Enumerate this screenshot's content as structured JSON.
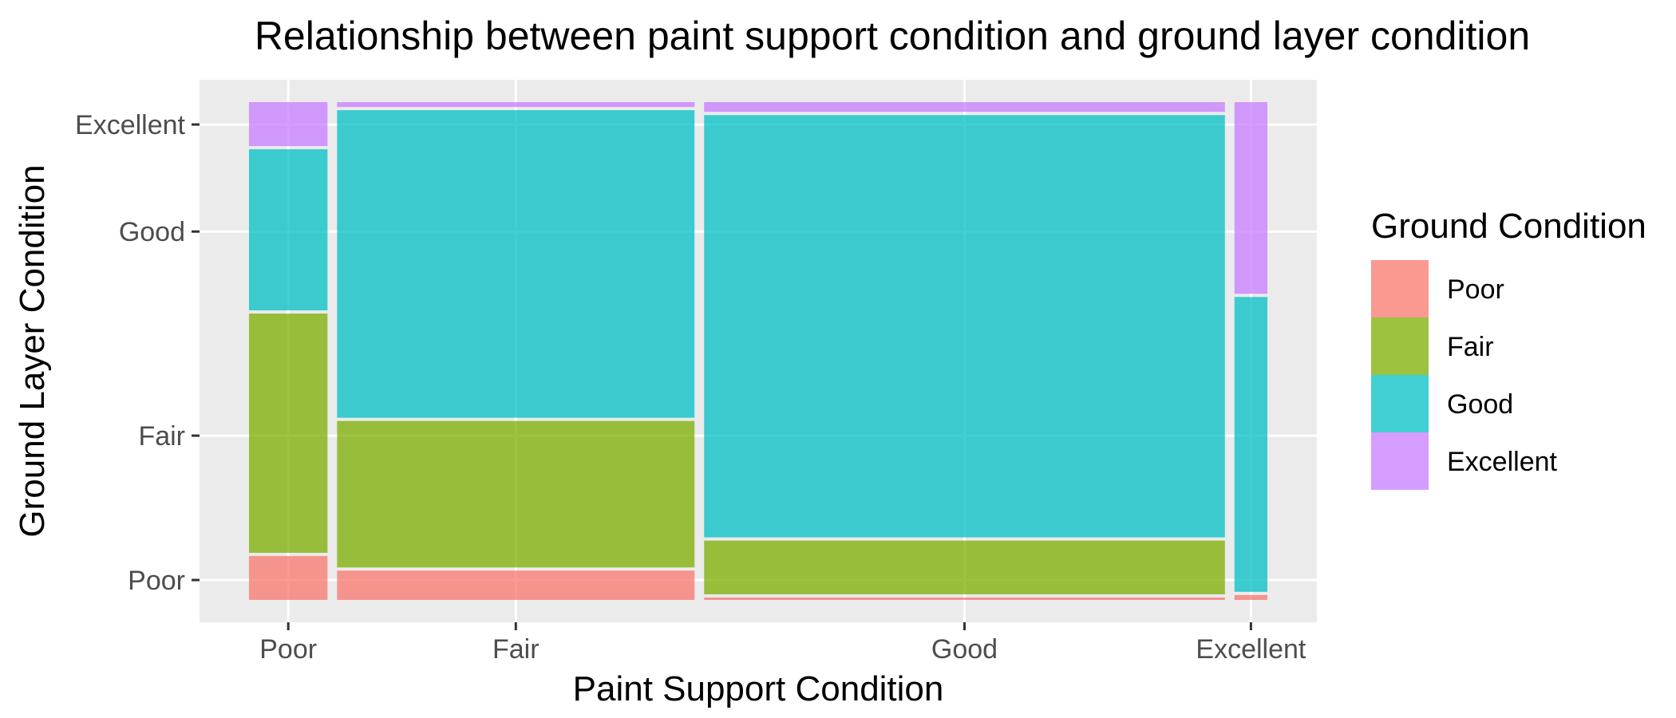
{
  "chart_data": {
    "type": "mosaic",
    "title": "Relationship between paint support condition and ground layer condition",
    "xlabel": "Paint Support Condition",
    "ylabel": "Ground Layer Condition",
    "x_categories": [
      "Poor",
      "Fair",
      "Good",
      "Excellent"
    ],
    "y_categories": [
      "Poor",
      "Fair",
      "Good",
      "Excellent"
    ],
    "x_proportions": [
      0.074,
      0.337,
      0.491,
      0.031
    ],
    "y_tick_positions": [
      0.04,
      0.33,
      0.74,
      0.955
    ],
    "conditional_proportions": [
      {
        "x": "Poor",
        "values": [
          0.09,
          0.49,
          0.33,
          0.09
        ]
      },
      {
        "x": "Fair",
        "values": [
          0.06,
          0.3,
          0.63,
          0.01
        ]
      },
      {
        "x": "Good",
        "values": [
          0.005,
          0.11,
          0.865,
          0.02
        ]
      },
      {
        "x": "Excellent",
        "values": [
          0.01,
          0.0,
          0.6,
          0.39
        ]
      }
    ],
    "legend": {
      "title": "Ground Condition",
      "placement": "right",
      "entries": [
        "Poor",
        "Fair",
        "Good",
        "Excellent"
      ]
    },
    "colors": {
      "Poor": "#F8766D",
      "Fair": "#7CAE00",
      "Good": "#00BFC4",
      "Excellent": "#C77CFF",
      "panel": "#EBEBEB",
      "grid": "#FFFFFF"
    },
    "grid": true
  }
}
